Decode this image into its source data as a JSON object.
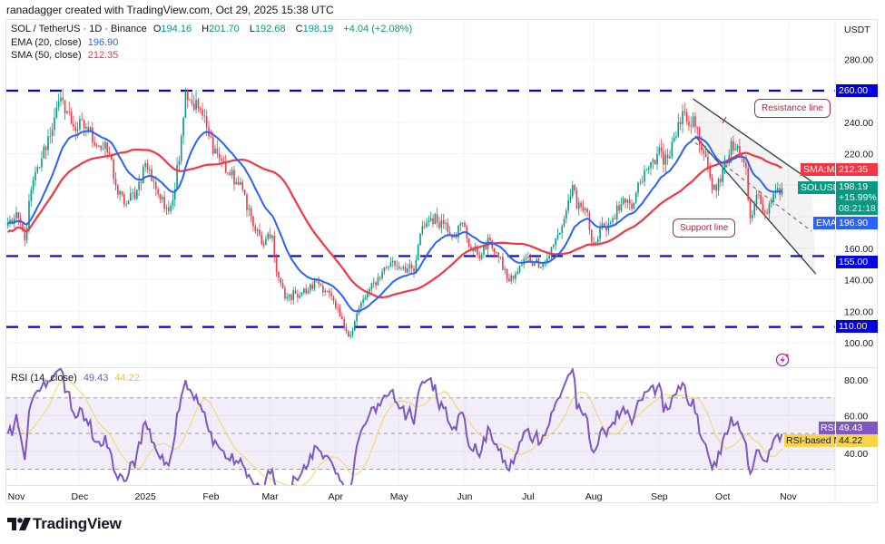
{
  "header": {
    "credit": "ranadagger created with TradingView.com, Oct 29, 2025 15:38 UTC"
  },
  "legend": {
    "symbol": "SOL / TetherUS · 1D · Binance",
    "open_label": "O",
    "open": "194.16",
    "high_label": "H",
    "high": "201.70",
    "low_label": "L",
    "low": "192.68",
    "close_label": "C",
    "close": "198.19",
    "change": "+4.04 (+2.08%)",
    "ema_label": "EMA (20, close)",
    "ema_value": "196.90",
    "sma_label": "SMA (50, close)",
    "sma_value": "212.35",
    "rsi_label": "RSI (14, close)",
    "rsi_value": "49.43",
    "rsi_ma_value": "44.22"
  },
  "price_axis": {
    "unit": "USDT",
    "tags": {
      "sma": {
        "label": "SMA:MA",
        "value": "212.35"
      },
      "symbol": {
        "label": "SOLUSDT",
        "value": "198.19",
        "change": "+15.99%",
        "countdown": "08:21:18"
      },
      "ema": {
        "label": "EMA",
        "value": "196.90"
      },
      "level_260": "260.00",
      "level_155": "155.00",
      "level_110": "110.00"
    }
  },
  "rsi_axis": {
    "tags": {
      "rsi": {
        "label": "RSI",
        "value": "49.43"
      },
      "rsi_ma": {
        "label": "RSI-based MA",
        "value": "44.22"
      }
    }
  },
  "annotations": {
    "resistance": "Resistance line",
    "support": "Support line"
  },
  "footer": {
    "logo": "TradingView"
  },
  "colors": {
    "up": "#089981",
    "down": "#f23645",
    "ema": "#2962ff",
    "sma": "#f23645",
    "levels": "#0000e0",
    "rsi": "#7e57c2",
    "rsi_ma": "#f5d77a",
    "channel": "#37474f"
  },
  "chart_data": {
    "type": "candlestick",
    "symbol": "SOL / TetherUS",
    "interval": "1D",
    "ylim": [
      90,
      295
    ],
    "y_ticks": [
      100,
      120,
      140,
      160,
      220,
      240,
      280
    ],
    "rsi_ylim": [
      25,
      85
    ],
    "rsi_ticks": [
      40,
      60,
      80
    ],
    "rsi_bands": [
      30,
      50,
      70
    ],
    "x_ticks": [
      {
        "label": "Nov",
        "date": "2024-11-01"
      },
      {
        "label": "Dec",
        "date": "2024-12-01"
      },
      {
        "label": "2025",
        "date": "2025-01-01"
      },
      {
        "label": "Feb",
        "date": "2025-02-01"
      },
      {
        "label": "Mar",
        "date": "2025-03-01"
      },
      {
        "label": "Apr",
        "date": "2025-04-01"
      },
      {
        "label": "May",
        "date": "2025-05-01"
      },
      {
        "label": "Jun",
        "date": "2025-06-01"
      },
      {
        "label": "Jul",
        "date": "2025-07-01"
      },
      {
        "label": "Aug",
        "date": "2025-08-01"
      },
      {
        "label": "Sep",
        "date": "2025-09-01"
      },
      {
        "label": "Oct",
        "date": "2025-10-01"
      },
      {
        "label": "Nov",
        "date": "2025-11-01"
      }
    ],
    "closes": {
      "dates": [
        "2024-10-28",
        "2024-11-02",
        "2024-11-05",
        "2024-11-08",
        "2024-11-13",
        "2024-11-19",
        "2024-11-23",
        "2024-11-28",
        "2024-12-04",
        "2024-12-10",
        "2024-12-15",
        "2024-12-19",
        "2024-12-23",
        "2024-12-28",
        "2025-01-01",
        "2025-01-05",
        "2025-01-10",
        "2025-01-14",
        "2025-01-18",
        "2025-01-20",
        "2025-01-22",
        "2025-01-27",
        "2025-01-31",
        "2025-02-04",
        "2025-02-09",
        "2025-02-13",
        "2025-02-17",
        "2025-02-21",
        "2025-02-26",
        "2025-03-02",
        "2025-03-04",
        "2025-03-08",
        "2025-03-13",
        "2025-03-19",
        "2025-03-23",
        "2025-03-28",
        "2025-04-01",
        "2025-04-05",
        "2025-04-08",
        "2025-04-12",
        "2025-04-16",
        "2025-04-23",
        "2025-04-27",
        "2025-05-03",
        "2025-05-08",
        "2025-05-12",
        "2025-05-16",
        "2025-05-23",
        "2025-05-27",
        "2025-05-31",
        "2025-06-04",
        "2025-06-09",
        "2025-06-13",
        "2025-06-17",
        "2025-06-22",
        "2025-06-26",
        "2025-06-30",
        "2025-07-04",
        "2025-07-09",
        "2025-07-13",
        "2025-07-17",
        "2025-07-22",
        "2025-07-24",
        "2025-07-28",
        "2025-08-01",
        "2025-08-06",
        "2025-08-10",
        "2025-08-14",
        "2025-08-19",
        "2025-08-23",
        "2025-08-27",
        "2025-08-31",
        "2025-09-05",
        "2025-09-09",
        "2025-09-13",
        "2025-09-18",
        "2025-09-22",
        "2025-09-26",
        "2025-09-30",
        "2025-10-05",
        "2025-10-08",
        "2025-10-12",
        "2025-10-14",
        "2025-10-18",
        "2025-10-22",
        "2025-10-26",
        "2025-10-29"
      ],
      "values": [
        176,
        179,
        165,
        197,
        217,
        243,
        254,
        237,
        237,
        225,
        220,
        194,
        188,
        197,
        214,
        202,
        185,
        191,
        231,
        260,
        254,
        248,
        231,
        220,
        208,
        202,
        194,
        174,
        162,
        168,
        145,
        128,
        131,
        133,
        139,
        133,
        122,
        110,
        105,
        122,
        131,
        145,
        151,
        148,
        145,
        174,
        179,
        176,
        168,
        176,
        159,
        156,
        165,
        154,
        139,
        145,
        154,
        151,
        151,
        162,
        174,
        200,
        185,
        185,
        162,
        174,
        179,
        188,
        185,
        202,
        211,
        220,
        217,
        231,
        246,
        237,
        220,
        197,
        202,
        228,
        225,
        211,
        179,
        194,
        182,
        197,
        198.19
      ]
    },
    "last_candle": {
      "date": "2025-10-29",
      "open": 194.16,
      "high": 201.7,
      "low": 192.68,
      "close": 198.19
    },
    "indicators": {
      "ema20_last": 196.9,
      "sma50_last": 212.35,
      "rsi14_last": 49.43,
      "rsi_ma_last": 44.22
    },
    "horizontal_levels": [
      260,
      155,
      110
    ],
    "channel": {
      "resistance": [
        {
          "date": "2025-09-17",
          "price": 254.8
        },
        {
          "date": "2025-11-12",
          "price": 202.4
        }
      ],
      "support": [
        {
          "date": "2025-09-18",
          "price": 231.2
        },
        {
          "date": "2025-11-14",
          "price": 143.7
        }
      ],
      "midline": [
        {
          "date": "2025-09-18",
          "price": 227
        },
        {
          "date": "2025-11-12",
          "price": 170.8
        }
      ]
    }
  }
}
